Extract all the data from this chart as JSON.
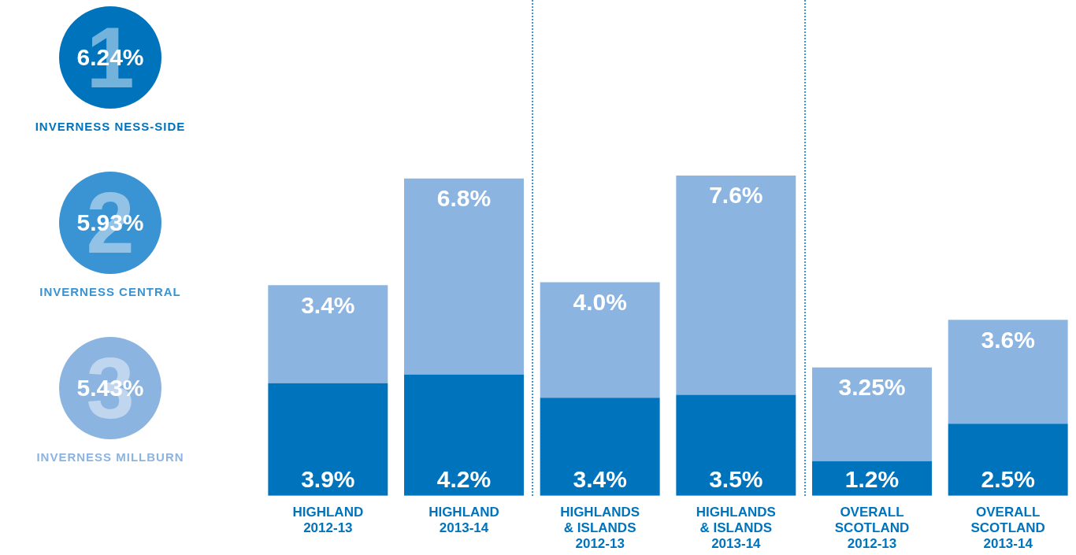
{
  "chart_data": [
    {
      "type": "other",
      "categories": [
        "INVERNESS NESS-SIDE",
        "INVERNESS CENTRAL",
        "INVERNESS MILLBURN"
      ],
      "value_labels": [
        "6.24%",
        "5.93%",
        "5.43%"
      ],
      "annotations": [
        "1",
        "2",
        "3"
      ],
      "colors": [
        "#0073bd",
        "#3a93d3",
        "#8cb4e0"
      ]
    },
    {
      "type": "bar",
      "stacked": true,
      "categories": [
        "HIGHLAND\n2012-13",
        "HIGHLAND\n2013-14",
        "HIGHLANDS\n& ISLANDS\n2012-13",
        "HIGHLANDS\n& ISLANDS\n2013-14",
        "OVERALL\nSCOTLAND\n2012-13",
        "OVERALL\nSCOTLAND\n2013-14"
      ],
      "series": [
        {
          "color": "#0073bd",
          "values": [
            3.9,
            4.2,
            3.4,
            3.5,
            1.2,
            2.5
          ],
          "value_labels": [
            "3.9%",
            "4.2%",
            "3.4%",
            "3.5%",
            "1.2%",
            "2.5%"
          ]
        },
        {
          "color": "#8cb4e0",
          "values": [
            3.4,
            6.8,
            4.0,
            7.6,
            3.25,
            3.6
          ],
          "value_labels": [
            "3.4%",
            "6.8%",
            "4.0%",
            "7.6%",
            "3.25%",
            "3.6%"
          ]
        }
      ]
    }
  ]
}
